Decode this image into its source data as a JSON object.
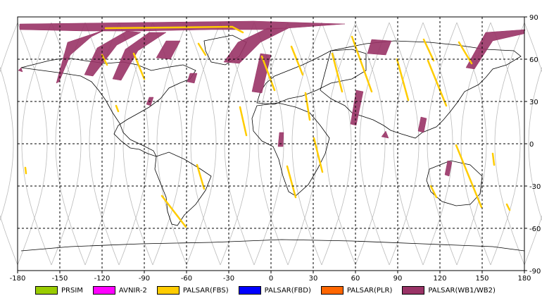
{
  "map": {
    "lon_ticks": [
      "-180",
      "-150",
      "-120",
      "-90",
      "-60",
      "-30",
      "0",
      "30",
      "60",
      "90",
      "120",
      "150",
      "180"
    ],
    "lat_ticks": [
      "90",
      "60",
      "30",
      "0",
      "-30",
      "-60",
      "-90"
    ],
    "grid": true,
    "background": "#ffffff",
    "grid_color": "#000000",
    "orbit_color": "#bbbbbb",
    "coast_color": "#000000"
  },
  "legend": [
    {
      "label": "PRSIM",
      "color": "#99cc00"
    },
    {
      "label": "AVNIR-2",
      "color": "#ff00ff"
    },
    {
      "label": "PALSAR(FBS)",
      "color": "#ffcc00"
    },
    {
      "label": "PALSAR(FBD)",
      "color": "#0000ff"
    },
    {
      "label": "PALSAR(PLR)",
      "color": "#ff6600"
    },
    {
      "label": "PALSAR(WB1/WB2)",
      "color": "#993366"
    }
  ]
}
